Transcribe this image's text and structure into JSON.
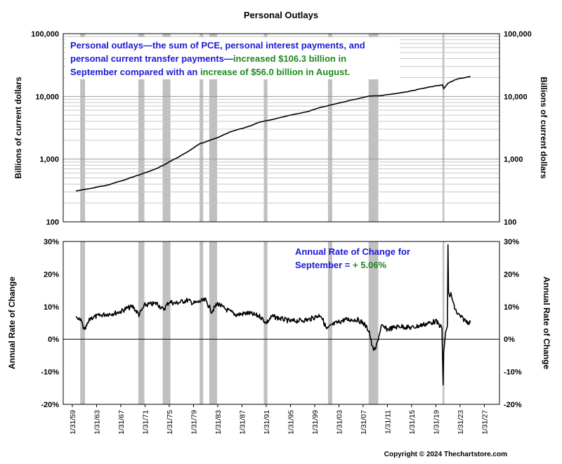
{
  "chart_data": [
    {
      "type": "line",
      "title": "Personal Outlays",
      "ylabel": "Billions of current dollars",
      "yscale": "log",
      "ylim": [
        100,
        100000
      ],
      "yticks": [
        "100",
        "1,000",
        "10,000",
        "100,000"
      ],
      "grid": true,
      "x": [
        1959.6,
        1962,
        1965,
        1968,
        1970,
        1973,
        1975,
        1978,
        1980,
        1983,
        1985,
        1988,
        1990,
        1993,
        1995,
        1998,
        2000,
        2003,
        2005,
        2008,
        2010,
        2013,
        2015,
        2017,
        2019,
        2020.1,
        2020.3,
        2021,
        2022,
        2023,
        2024.7
      ],
      "values": [
        310,
        340,
        390,
        480,
        560,
        710,
        900,
        1300,
        1750,
        2200,
        2700,
        3300,
        3900,
        4500,
        5000,
        5800,
        6700,
        7800,
        8700,
        10200,
        10300,
        11300,
        12300,
        13500,
        14800,
        15200,
        13200,
        16300,
        18000,
        19400,
        20700
      ],
      "annotation": {
        "line1": "Personal outlays—the sum of PCE, personal interest payments, and",
        "line2": "personal current transfer payments—",
        "line2_green": "increased $106.3 billion in",
        "line3": "September compared with an ",
        "line3_green": "increase of $56.0 billion in August."
      }
    },
    {
      "type": "line",
      "ylabel": "Annual Rate of Change",
      "ylim": [
        -20,
        30
      ],
      "yticks": [
        "30%",
        "20%",
        "10%",
        "0%",
        "-10%",
        "-20%"
      ],
      "grid": false,
      "x": [
        1959.6,
        1960,
        1960.5,
        1961,
        1962,
        1964,
        1966,
        1967,
        1968,
        1969,
        1970,
        1971,
        1973,
        1974,
        1975,
        1976,
        1978,
        1979,
        1980,
        1981,
        1982,
        1983,
        1984,
        1986,
        1988,
        1990,
        1991,
        1992,
        1995,
        1998,
        2000,
        2001,
        2002,
        2004,
        2006,
        2007,
        2008,
        2008.5,
        2009,
        2010,
        2011,
        2013,
        2015,
        2017,
        2019,
        2020,
        2020.2,
        2020.3,
        2020.6,
        2020.9,
        2021,
        2021.1,
        2021.3,
        2021.5,
        2022,
        2022.5,
        2023,
        2024,
        2024.7
      ],
      "values": [
        7.0,
        6.0,
        5.5,
        2.5,
        6.5,
        7.5,
        8.0,
        8.5,
        9.5,
        10.0,
        7.5,
        10.5,
        11.0,
        9.0,
        11.5,
        11.0,
        12.0,
        11.0,
        11.5,
        12.0,
        8.5,
        11.0,
        9.5,
        7.5,
        8.0,
        7.0,
        5.0,
        7.0,
        5.5,
        6.0,
        7.5,
        3.0,
        4.5,
        6.0,
        6.0,
        5.0,
        2.5,
        -2.5,
        -3.5,
        4.0,
        3.0,
        4.0,
        3.5,
        4.5,
        5.5,
        3.5,
        -14.0,
        -4.0,
        2.0,
        4.0,
        29.0,
        14.5,
        13.0,
        14.0,
        10.0,
        8.0,
        7.0,
        5.5,
        5.06
      ],
      "annotation": {
        "line1": "Annual Rate of Change for",
        "line2": "September = ",
        "line2_green": "+ 5.06%"
      }
    }
  ],
  "x_tick_labels": [
    "1/31/59",
    "1/31/63",
    "1/31/67",
    "1/31/71",
    "1/31/75",
    "1/31/79",
    "1/31/83",
    "1/31/87",
    "1/31/91",
    "1/31/95",
    "1/31/99",
    "1/31/03",
    "1/31/07",
    "1/31/11",
    "1/31/15",
    "1/31/19",
    "1/31/23",
    "1/31/27"
  ],
  "x_tick_years": [
    1959,
    1963,
    1967,
    1971,
    1975,
    1979,
    1983,
    1987,
    1991,
    1995,
    1999,
    2003,
    2007,
    2011,
    2015,
    2019,
    2023,
    2027
  ],
  "recessions": [
    [
      1960.3,
      1961.1
    ],
    [
      1969.9,
      1970.9
    ],
    [
      1973.9,
      1975.2
    ],
    [
      1980.0,
      1980.6
    ],
    [
      1981.6,
      1982.9
    ],
    [
      1990.6,
      1991.2
    ],
    [
      2001.2,
      2001.9
    ],
    [
      2007.9,
      2009.5
    ],
    [
      2020.1,
      2020.4
    ]
  ],
  "colors": {
    "recession": "#c0c0c0",
    "line": "#000000",
    "blue_text": "#1a1ad6",
    "green_text": "#1f8a1f"
  },
  "copyright": "Copyright © 2024 Thechartstore.com"
}
